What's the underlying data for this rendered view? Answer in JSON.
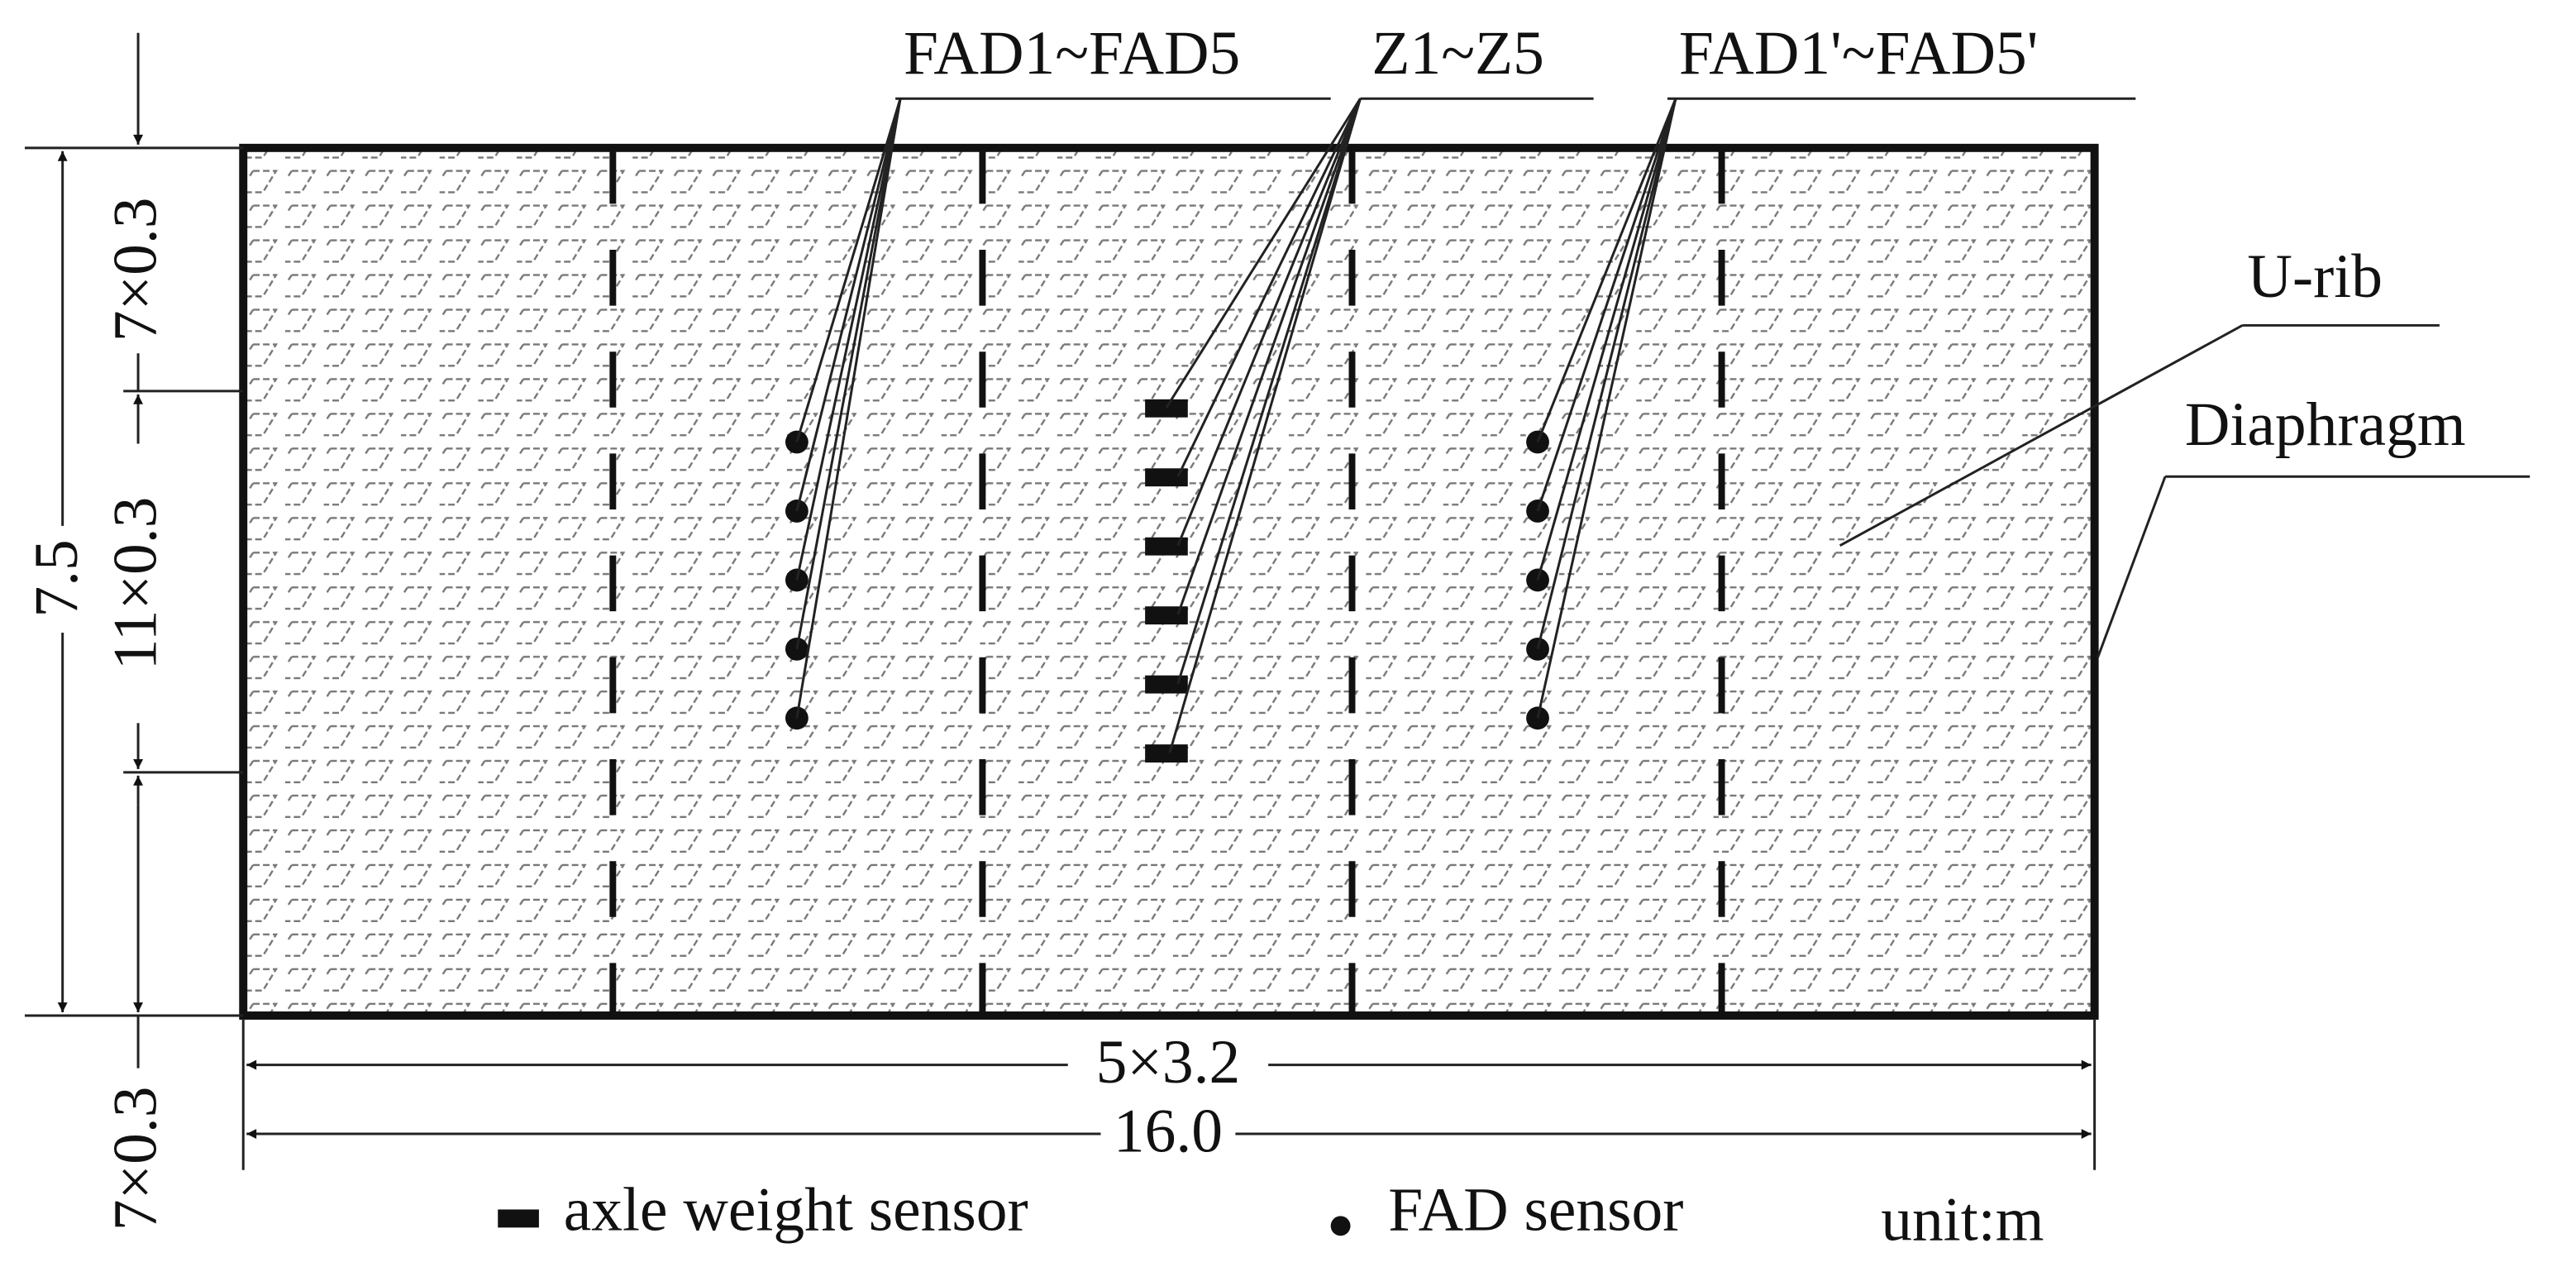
{
  "labels": {
    "fad": "FAD1~FAD5",
    "z": "Z1~Z5",
    "fad_prime": "FAD1'~FAD5'",
    "u_rib": "U-rib",
    "diaphragm": "Diaphragm"
  },
  "dimensions": {
    "top": "7×0.3",
    "middle": "11×0.3",
    "bottom": "7×0.3",
    "height": "7.5",
    "span": "5×3.2",
    "length": "16.0"
  },
  "legend": {
    "axle": "axle weight sensor",
    "fad": "FAD sensor",
    "unit": "unit:m"
  }
}
